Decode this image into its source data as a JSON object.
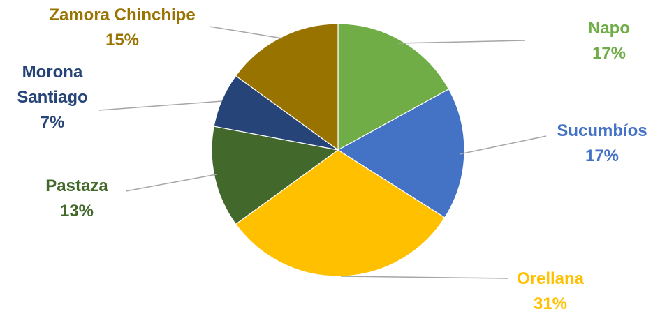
{
  "chart_data": {
    "type": "pie",
    "title": "",
    "slices": [
      {
        "label": [
          "Napo"
        ],
        "value": 17,
        "display": "17%",
        "color": "#70ad47"
      },
      {
        "label": [
          "Sucumbíos"
        ],
        "value": 17,
        "display": "17%",
        "color": "#4472c4"
      },
      {
        "label": [
          "Orellana"
        ],
        "value": 31,
        "display": "31%",
        "color": "#ffc000"
      },
      {
        "label": [
          "Pastaza"
        ],
        "value": 13,
        "display": "13%",
        "color": "#43682b"
      },
      {
        "label": [
          "Morona",
          "Santiago"
        ],
        "value": 7,
        "display": "7%",
        "color": "#264478"
      },
      {
        "label": [
          "Zamora Chinchipe"
        ],
        "value": 15,
        "display": "15%",
        "color": "#997300"
      }
    ],
    "label_colors": [
      "#70ad47",
      "#4472c4",
      "#ffc000",
      "#43682b",
      "#264478",
      "#997300"
    ]
  }
}
